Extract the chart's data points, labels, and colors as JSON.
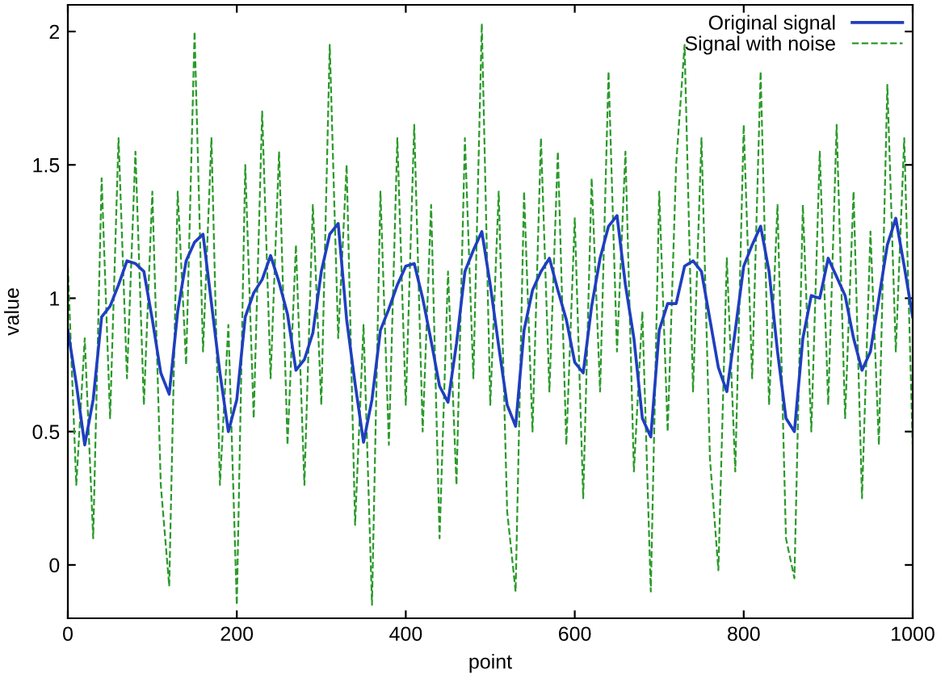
{
  "chart_data": {
    "type": "line",
    "xlabel": "point",
    "ylabel": "value",
    "xlim": [
      0,
      1000
    ],
    "ylim": [
      -0.2,
      2.1
    ],
    "xticks": [
      0,
      200,
      400,
      600,
      800,
      1000
    ],
    "yticks": [
      0,
      {
        "value": 0.5,
        "label": "0.5"
      },
      1,
      {
        "value": 1.5,
        "label": "1.5"
      },
      2
    ],
    "grid": false,
    "legend": "top right",
    "marker": "none",
    "series": [
      {
        "name": "Original signal",
        "color": "#1f3fbf",
        "line_style": "solid",
        "x": [
          0,
          10,
          20,
          30,
          40,
          50,
          60,
          70,
          80,
          90,
          100,
          110,
          120,
          130,
          140,
          150,
          160,
          170,
          180,
          190,
          200,
          210,
          220,
          230,
          240,
          250,
          260,
          270,
          280,
          290,
          300,
          310,
          320,
          330,
          340,
          350,
          360,
          370,
          380,
          390,
          400,
          410,
          420,
          430,
          440,
          450,
          460,
          470,
          480,
          490,
          500,
          510,
          520,
          530,
          540,
          550,
          560,
          570,
          580,
          590,
          600,
          610,
          620,
          630,
          640,
          650,
          660,
          670,
          680,
          690,
          700,
          710,
          720,
          730,
          740,
          750,
          760,
          770,
          780,
          790,
          800,
          810,
          820,
          830,
          840,
          850,
          860,
          870,
          880,
          890,
          900,
          910,
          920,
          930,
          940,
          950,
          960,
          970,
          980,
          990,
          1000
        ],
        "values": [
          0.88,
          0.68,
          0.45,
          0.62,
          0.93,
          0.97,
          1.05,
          1.14,
          1.13,
          1.1,
          0.92,
          0.72,
          0.64,
          0.95,
          1.14,
          1.21,
          1.24,
          0.98,
          0.72,
          0.5,
          0.62,
          0.93,
          1.02,
          1.07,
          1.16,
          1.06,
          0.94,
          0.73,
          0.77,
          0.87,
          1.1,
          1.24,
          1.28,
          0.92,
          0.68,
          0.46,
          0.62,
          0.88,
          0.96,
          1.05,
          1.12,
          1.13,
          1.0,
          0.84,
          0.67,
          0.61,
          0.83,
          1.1,
          1.18,
          1.25,
          1.05,
          0.82,
          0.6,
          0.52,
          0.88,
          1.03,
          1.1,
          1.15,
          1.03,
          0.92,
          0.76,
          0.72,
          0.97,
          1.15,
          1.27,
          1.31,
          1.05,
          0.85,
          0.55,
          0.48,
          0.88,
          0.98,
          0.98,
          1.12,
          1.14,
          1.1,
          0.92,
          0.74,
          0.65,
          0.88,
          1.12,
          1.2,
          1.27,
          1.1,
          0.8,
          0.55,
          0.5,
          0.85,
          1.01,
          1.0,
          1.15,
          1.08,
          1.01,
          0.85,
          0.73,
          0.8,
          1.0,
          1.2,
          1.3,
          1.12,
          0.93
        ]
      },
      {
        "name": "Signal with noise",
        "color": "#2a9a2a",
        "line_style": "dashed",
        "x": [
          0,
          10,
          20,
          30,
          40,
          50,
          60,
          70,
          80,
          90,
          100,
          110,
          120,
          130,
          140,
          150,
          160,
          170,
          180,
          190,
          200,
          210,
          220,
          230,
          240,
          250,
          260,
          270,
          280,
          290,
          300,
          310,
          320,
          330,
          340,
          350,
          360,
          370,
          380,
          390,
          400,
          410,
          420,
          430,
          440,
          450,
          460,
          470,
          480,
          490,
          500,
          510,
          520,
          530,
          540,
          550,
          560,
          570,
          580,
          590,
          600,
          610,
          620,
          630,
          640,
          650,
          660,
          670,
          680,
          690,
          700,
          710,
          720,
          730,
          740,
          750,
          760,
          770,
          780,
          790,
          800,
          810,
          820,
          830,
          840,
          850,
          860,
          870,
          880,
          890,
          900,
          910,
          920,
          930,
          940,
          950,
          960,
          970,
          980,
          990,
          1000
        ],
        "values": [
          1.12,
          0.3,
          0.85,
          0.1,
          1.45,
          0.55,
          1.6,
          0.7,
          1.55,
          0.6,
          1.4,
          0.3,
          -0.08,
          1.4,
          0.75,
          2.0,
          0.8,
          1.6,
          0.3,
          0.9,
          -0.15,
          1.5,
          0.55,
          1.7,
          0.7,
          1.55,
          0.45,
          1.2,
          0.3,
          1.35,
          0.6,
          1.95,
          0.85,
          1.5,
          0.15,
          0.9,
          -0.15,
          1.4,
          0.45,
          1.6,
          0.6,
          1.65,
          0.5,
          1.35,
          0.1,
          1.1,
          0.3,
          1.6,
          0.7,
          2.03,
          0.6,
          1.4,
          0.2,
          -0.1,
          1.4,
          0.5,
          1.6,
          0.65,
          1.55,
          0.45,
          1.3,
          0.25,
          1.45,
          0.65,
          1.85,
          0.8,
          1.55,
          0.35,
          0.95,
          -0.1,
          1.4,
          0.5,
          1.5,
          1.95,
          0.65,
          1.6,
          0.4,
          -0.02,
          1.15,
          0.35,
          1.65,
          0.7,
          1.85,
          0.6,
          1.35,
          0.1,
          -0.05,
          1.35,
          0.5,
          1.55,
          0.6,
          1.65,
          0.55,
          1.4,
          0.25,
          1.25,
          0.45,
          1.8,
          0.8,
          1.6,
          0.45
        ]
      }
    ]
  }
}
